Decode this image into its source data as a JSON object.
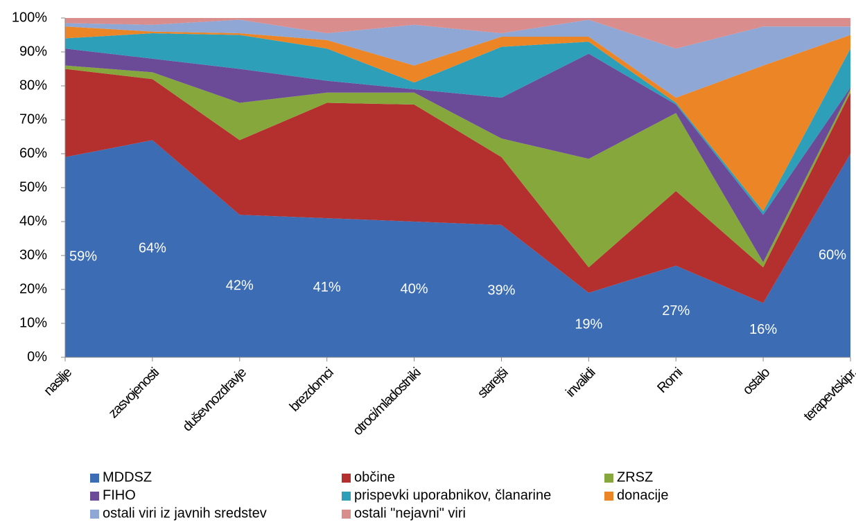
{
  "chart_data": {
    "type": "stacked_area_100",
    "categories": [
      "nasilje",
      "zasvojenosti",
      "duševnozdravje",
      "brezdomci",
      "otroci/mladostniki",
      "starejši",
      "invalidi",
      "Romi",
      "ostalo",
      "terapevtskipr."
    ],
    "series": [
      {
        "name": "MDDSZ",
        "color": "#3c6cb4",
        "values": [
          59,
          64,
          42,
          41,
          40,
          39,
          19,
          27,
          16,
          60
        ],
        "value_labels": [
          "59%",
          "64%",
          "42%",
          "41%",
          "40%",
          "39%",
          "19%",
          "27%",
          "16%",
          "60%"
        ]
      },
      {
        "name": "občine",
        "color": "#b3302f",
        "values": [
          26,
          18,
          22,
          34,
          34.5,
          20,
          7.5,
          22,
          10.5,
          18
        ]
      },
      {
        "name": "ZRSZ",
        "color": "#86a73c",
        "values": [
          1,
          2,
          11,
          3,
          3.5,
          5.5,
          32,
          23,
          1.5,
          1
        ]
      },
      {
        "name": "FIHO",
        "color": "#6b4b97",
        "values": [
          5,
          4,
          10,
          3.5,
          1,
          12,
          31,
          2.5,
          14,
          0.5
        ]
      },
      {
        "name": "prispevki uporabnikov, članarine",
        "color": "#2e9fb9",
        "values": [
          3,
          7.5,
          10,
          9.5,
          2,
          15,
          3.5,
          0.5,
          1,
          11.5
        ]
      },
      {
        "name": "donacije",
        "color": "#ec8526",
        "values": [
          3.5,
          0.5,
          0.5,
          2.5,
          5,
          3,
          1.5,
          1.5,
          43,
          4
        ]
      },
      {
        "name": "ostali viri iz javnih sredstev",
        "color": "#8ea7d5",
        "values": [
          1,
          2,
          4,
          2,
          12,
          1,
          5,
          14.5,
          11.5,
          2.5
        ]
      },
      {
        "name": "ostali \"nejavni\" viri",
        "color": "#d98d8c",
        "values": [
          1.5,
          2,
          0.5,
          4.5,
          2,
          4.5,
          0.5,
          9,
          2.5,
          2.5
        ]
      }
    ],
    "ylim": [
      0,
      100
    ],
    "yticks": [
      {
        "value": 0,
        "label": "0%"
      },
      {
        "value": 10,
        "label": "10%"
      },
      {
        "value": 20,
        "label": "20%"
      },
      {
        "value": 30,
        "label": "30%"
      },
      {
        "value": 40,
        "label": "40%"
      },
      {
        "value": 50,
        "label": "50%"
      },
      {
        "value": 60,
        "label": "60%"
      },
      {
        "value": 70,
        "label": "70%"
      },
      {
        "value": 80,
        "label": "80%"
      },
      {
        "value": 90,
        "label": "90%"
      },
      {
        "value": 100,
        "label": "100%"
      }
    ],
    "legend": "bottom"
  }
}
